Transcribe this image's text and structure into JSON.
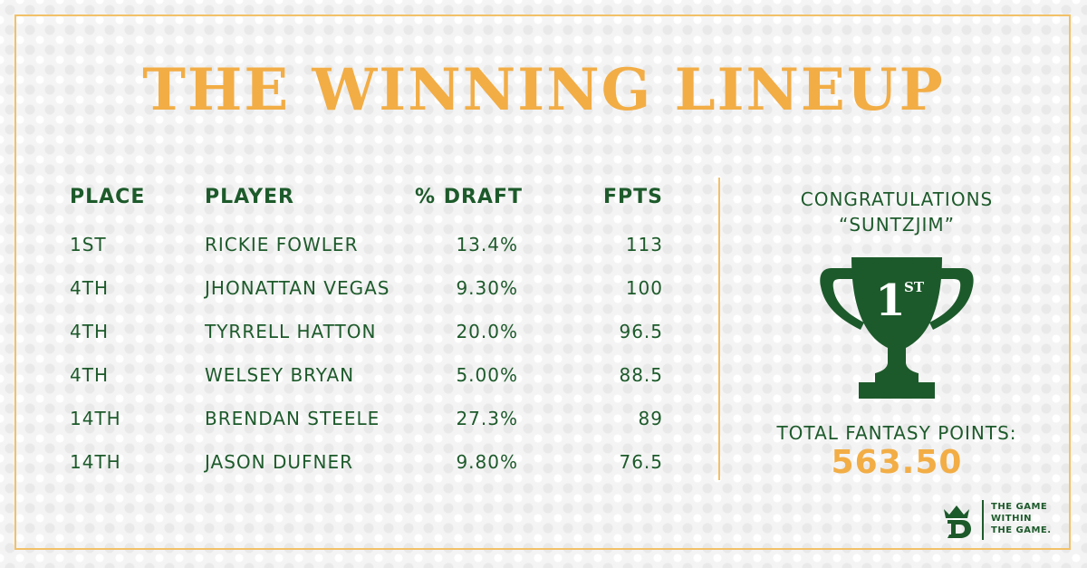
{
  "title": "THE WINNING LINEUP",
  "table": {
    "headers": {
      "place": "PLACE",
      "player": "PLAYER",
      "draft": "% DRAFT",
      "fpts": "FPTS"
    },
    "rows": [
      {
        "place": "1ST",
        "player": "RICKIE FOWLER",
        "draft": "13.4%",
        "fpts": "113"
      },
      {
        "place": "4TH",
        "player": "JHONATTAN VEGAS",
        "draft": "9.30%",
        "fpts": "100"
      },
      {
        "place": "4TH",
        "player": "TYRRELL HATTON",
        "draft": "20.0%",
        "fpts": "96.5"
      },
      {
        "place": "4TH",
        "player": "WELSEY BRYAN",
        "draft": "5.00%",
        "fpts": "88.5"
      },
      {
        "place": "14TH",
        "player": "BRENDAN STEELE",
        "draft": "27.3%",
        "fpts": "89"
      },
      {
        "place": "14TH",
        "player": "JASON DUFNER",
        "draft": "9.80%",
        "fpts": "76.5"
      }
    ]
  },
  "winner": {
    "congrats": "CONGRATULATIONS",
    "username": "“SUNTZJIM”",
    "trophy_place": "1",
    "trophy_suffix": "ST",
    "total_label": "TOTAL FANTASY POINTS:",
    "total_value": "563.50"
  },
  "brand": {
    "logo_icon": "draftkings-crown-logo-icon",
    "tagline_line1": "THE GAME",
    "tagline_line2": "WITHIN",
    "tagline_line3": "THE GAME."
  },
  "colors": {
    "accent_orange": "#f2ad45",
    "primary_green": "#1d5a2b",
    "frame_gold": "#f2c168"
  }
}
